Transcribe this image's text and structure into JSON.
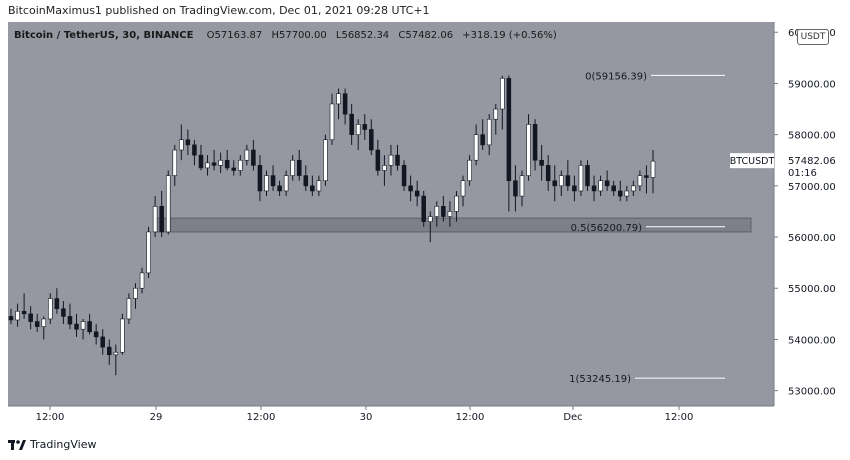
{
  "header": {
    "publisher_line": "BitcoinMaximus1 published on TradingView.com, Dec 01, 2021 09:28 UTC+1"
  },
  "legend": {
    "symbol": "Bitcoin / TetherUS, 30, BINANCE",
    "open_key": "O",
    "open": "57163.87",
    "high_key": "H",
    "high": "57700.00",
    "low_key": "L",
    "low": "56852.34",
    "close_key": "C",
    "close": "57482.06",
    "change": "+318.19 (+0.56%)"
  },
  "currency_badge": "USDT",
  "footer": {
    "brand": "TradingView"
  },
  "colors": {
    "background": "#9598a1",
    "axis_bg": "#ffffff",
    "candle": "#ffffff",
    "candle_dark": "#131722",
    "box_fill": "#7d8089",
    "price_tag_bg": "#ffffff"
  },
  "chart_data": {
    "type": "candlestick",
    "ylim": [
      52700,
      60200
    ],
    "y_ticks": [
      "53000.00",
      "54000.00",
      "55000.00",
      "56000.00",
      "57000.00",
      "58000.00",
      "59000.00",
      "60000.00"
    ],
    "x_ticks": [
      "12:00",
      "29",
      "12:00",
      "30",
      "12:00",
      "Dec",
      "12:00"
    ],
    "fib_levels": [
      {
        "label": "0(59156.39)",
        "value": 59156.39
      },
      {
        "label": "0.5(56200.79)",
        "value": 56200.79
      },
      {
        "label": "1(53245.19)",
        "value": 53245.19
      }
    ],
    "support_zone": [
      56100,
      56370
    ],
    "last_price": {
      "symbol": "BTCUSDT",
      "price": "57482.06",
      "countdown": "01:16",
      "value": 57482.06
    },
    "candles": [
      [
        54450,
        54600,
        54300,
        54380
      ],
      [
        54380,
        54700,
        54250,
        54550
      ],
      [
        54550,
        54900,
        54400,
        54500
      ],
      [
        54500,
        54650,
        54200,
        54350
      ],
      [
        54350,
        54500,
        54150,
        54250
      ],
      [
        54250,
        54450,
        54000,
        54400
      ],
      [
        54400,
        54900,
        54300,
        54800
      ],
      [
        54800,
        55000,
        54500,
        54600
      ],
      [
        54600,
        54750,
        54300,
        54450
      ],
      [
        54450,
        54700,
        54200,
        54300
      ],
      [
        54300,
        54500,
        54050,
        54200
      ],
      [
        54200,
        54400,
        54000,
        54350
      ],
      [
        54350,
        54500,
        54100,
        54150
      ],
      [
        54150,
        54300,
        53900,
        54050
      ],
      [
        54050,
        54200,
        53700,
        53850
      ],
      [
        53850,
        54000,
        53500,
        53700
      ],
      [
        53700,
        53900,
        53300,
        53750
      ],
      [
        53750,
        54500,
        53700,
        54400
      ],
      [
        54400,
        54900,
        54300,
        54800
      ],
      [
        54800,
        55100,
        54600,
        55000
      ],
      [
        55000,
        55400,
        54900,
        55300
      ],
      [
        55300,
        56200,
        55200,
        56100
      ],
      [
        56100,
        56800,
        56000,
        56600
      ],
      [
        56600,
        56900,
        56000,
        56100
      ],
      [
        56100,
        57300,
        56050,
        57200
      ],
      [
        57200,
        57800,
        57000,
        57700
      ],
      [
        57700,
        58200,
        57500,
        57900
      ],
      [
        57900,
        58100,
        57600,
        57800
      ],
      [
        57800,
        57900,
        57400,
        57600
      ],
      [
        57600,
        57800,
        57300,
        57350
      ],
      [
        57350,
        57600,
        57200,
        57450
      ],
      [
        57450,
        57700,
        57300,
        57400
      ],
      [
        57400,
        57650,
        57250,
        57500
      ],
      [
        57500,
        57700,
        57300,
        57350
      ],
      [
        57350,
        57500,
        57200,
        57300
      ],
      [
        57300,
        57600,
        57200,
        57500
      ],
      [
        57500,
        57800,
        57400,
        57700
      ],
      [
        57700,
        57900,
        57300,
        57400
      ],
      [
        57400,
        57600,
        56700,
        56900
      ],
      [
        56900,
        57300,
        56800,
        57200
      ],
      [
        57200,
        57400,
        56900,
        57000
      ],
      [
        57000,
        57100,
        56800,
        56900
      ],
      [
        56900,
        57300,
        56800,
        57200
      ],
      [
        57200,
        57600,
        57100,
        57500
      ],
      [
        57500,
        57700,
        57100,
        57200
      ],
      [
        57200,
        57400,
        56900,
        57000
      ],
      [
        57000,
        57200,
        56800,
        56900
      ],
      [
        56900,
        57200,
        56800,
        57100
      ],
      [
        57100,
        58000,
        57000,
        57900
      ],
      [
        57900,
        58800,
        57800,
        58600
      ],
      [
        58600,
        58900,
        58300,
        58800
      ],
      [
        58800,
        58900,
        58200,
        58400
      ],
      [
        58400,
        58600,
        57800,
        58000
      ],
      [
        58000,
        58300,
        57700,
        58200
      ],
      [
        58200,
        58400,
        57900,
        58100
      ],
      [
        58100,
        58300,
        57600,
        57700
      ],
      [
        57700,
        57900,
        57200,
        57300
      ],
      [
        57300,
        57600,
        57000,
        57400
      ],
      [
        57400,
        57800,
        57200,
        57600
      ],
      [
        57600,
        57800,
        57300,
        57400
      ],
      [
        57400,
        57500,
        56900,
        57000
      ],
      [
        57000,
        57200,
        56700,
        56900
      ],
      [
        56900,
        57100,
        56600,
        56800
      ],
      [
        56800,
        56900,
        56200,
        56300
      ],
      [
        56300,
        56500,
        55900,
        56400
      ],
      [
        56400,
        56700,
        56200,
        56600
      ],
      [
        56600,
        56800,
        56300,
        56400
      ],
      [
        56400,
        56700,
        56200,
        56500
      ],
      [
        56500,
        56900,
        56300,
        56800
      ],
      [
        56800,
        57200,
        56600,
        57100
      ],
      [
        57100,
        57600,
        57000,
        57500
      ],
      [
        57500,
        58200,
        57400,
        58000
      ],
      [
        58000,
        58300,
        57700,
        57800
      ],
      [
        57800,
        58400,
        57600,
        58300
      ],
      [
        58300,
        58600,
        58000,
        58500
      ],
      [
        58500,
        59150,
        58100,
        59100
      ],
      [
        59100,
        59156,
        56500,
        57100
      ],
      [
        57100,
        57400,
        56500,
        56800
      ],
      [
        56800,
        57300,
        56600,
        57200
      ],
      [
        57200,
        58400,
        57100,
        58200
      ],
      [
        58200,
        58300,
        57300,
        57500
      ],
      [
        57500,
        57800,
        57100,
        57400
      ],
      [
        57400,
        57600,
        56900,
        57100
      ],
      [
        57100,
        57400,
        56700,
        57000
      ],
      [
        57000,
        57300,
        56800,
        57200
      ],
      [
        57200,
        57500,
        56900,
        57000
      ],
      [
        57000,
        57200,
        56700,
        56900
      ],
      [
        56900,
        57500,
        56800,
        57400
      ],
      [
        57400,
        57500,
        56900,
        57000
      ],
      [
        57000,
        57200,
        56700,
        56900
      ],
      [
        56900,
        57200,
        56800,
        57100
      ],
      [
        57100,
        57300,
        56900,
        57000
      ],
      [
        57000,
        57100,
        56800,
        56900
      ],
      [
        56900,
        57100,
        56700,
        56800
      ],
      [
        56800,
        57000,
        56700,
        56900
      ],
      [
        56900,
        57100,
        56800,
        57000
      ],
      [
        57000,
        57300,
        56900,
        57200
      ],
      [
        57200,
        57400,
        56850,
        57163
      ],
      [
        57163,
        57700,
        56852,
        57482
      ]
    ]
  }
}
